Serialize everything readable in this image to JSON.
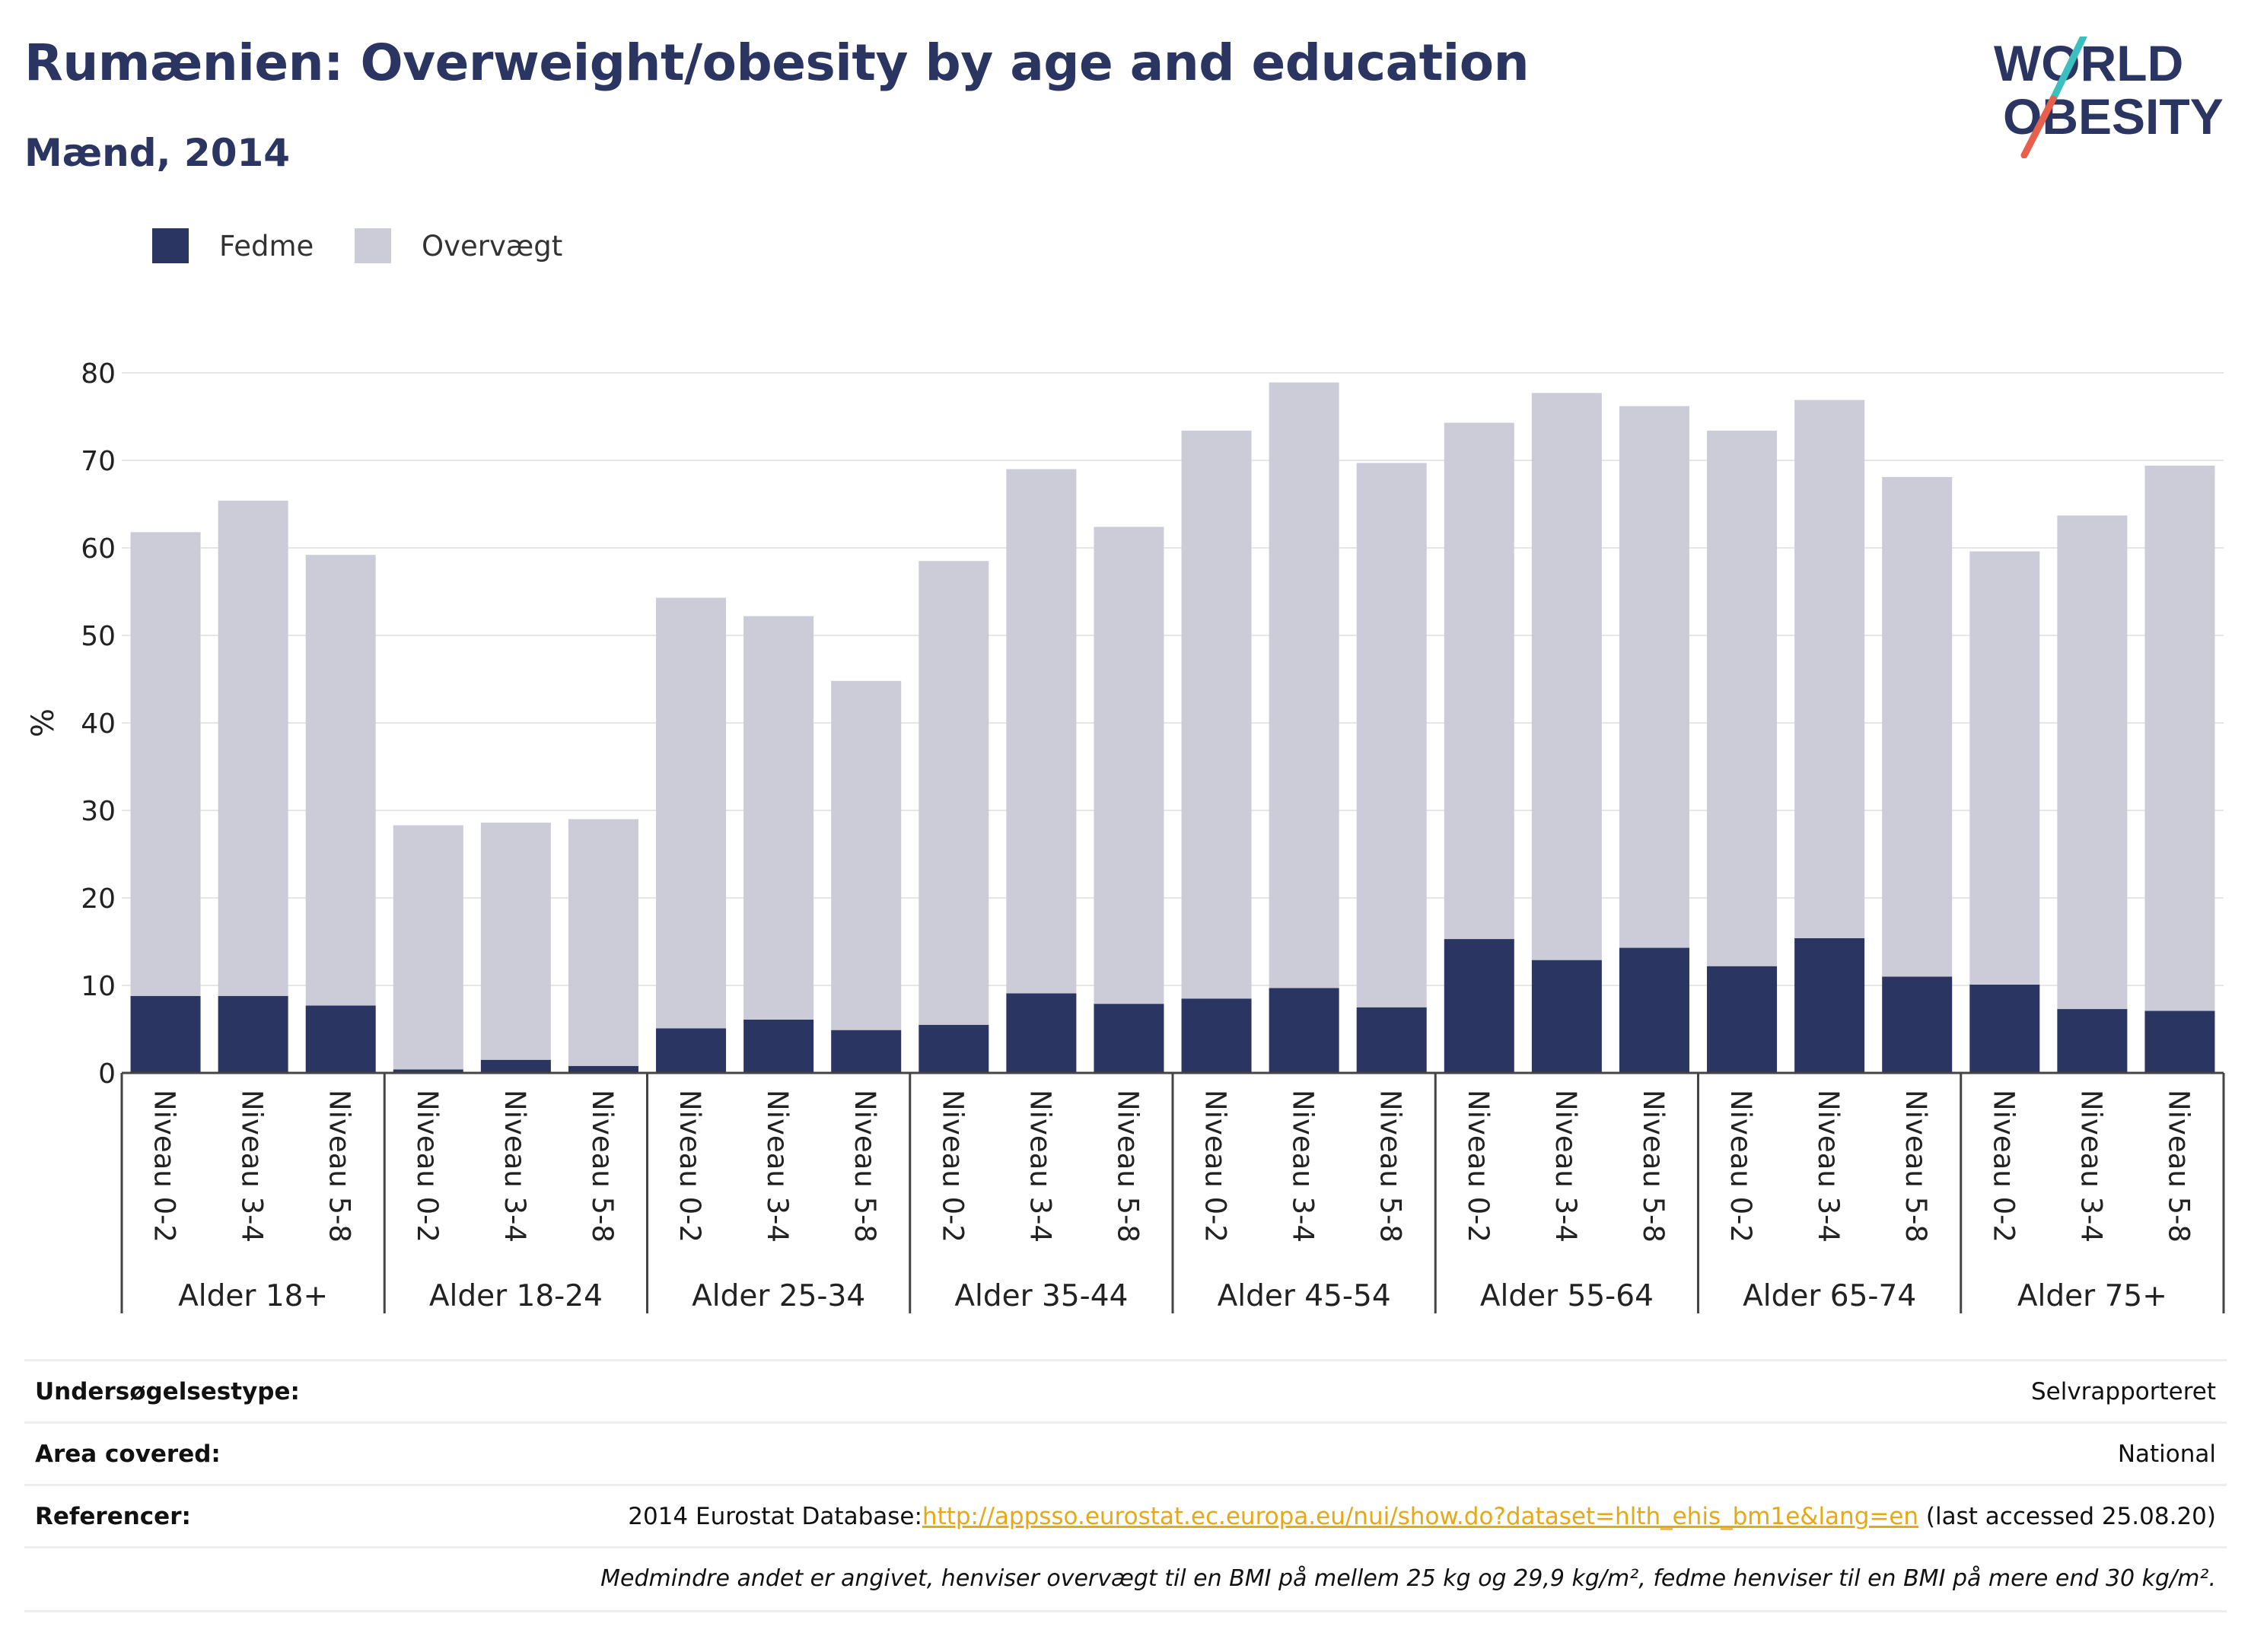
{
  "header": {
    "title": "Rumænien: Overweight/obesity by age and education",
    "subtitle": "Mænd, 2014"
  },
  "logo": {
    "line1": "WORLD",
    "line2": "OBESITY",
    "text_color": "#2b3562",
    "slash_color_top": "#3bbfbf",
    "slash_color_bottom": "#e8604c"
  },
  "legend": [
    {
      "label": "Fedme",
      "color": "#2b3562"
    },
    {
      "label": "Overvægt",
      "color": "#cbccd8"
    }
  ],
  "chart_data": {
    "type": "bar",
    "stacked": true,
    "ylabel": "%",
    "xlabel": "",
    "ylim": [
      0,
      80
    ],
    "yticks": [
      0,
      10,
      20,
      30,
      40,
      50,
      60,
      70,
      80
    ],
    "grid": true,
    "legend_position": "top-left",
    "groups": [
      "Alder 18+",
      "Alder 18-24",
      "Alder 25-34",
      "Alder 35-44",
      "Alder 45-54",
      "Alder 55-64",
      "Alder 65-74",
      "Alder 75+"
    ],
    "levels": [
      "Niveau 0-2",
      "Niveau 3-4",
      "Niveau 5-8"
    ],
    "series": [
      {
        "name": "Fedme",
        "color": "#2b3562",
        "values": [
          8.8,
          8.8,
          7.7,
          0.4,
          1.5,
          0.8,
          5.1,
          6.1,
          4.9,
          5.5,
          9.1,
          7.9,
          8.5,
          9.7,
          7.5,
          15.3,
          12.9,
          14.3,
          12.2,
          15.4,
          11.0,
          10.1,
          7.3,
          7.1
        ]
      },
      {
        "name": "Overvægt",
        "color": "#cbccd8",
        "values": [
          53.0,
          56.6,
          51.5,
          27.9,
          27.1,
          28.2,
          49.2,
          46.1,
          39.9,
          53.0,
          59.9,
          54.5,
          64.9,
          69.2,
          62.2,
          59.0,
          64.8,
          61.9,
          61.2,
          61.5,
          57.1,
          49.5,
          56.4,
          62.3
        ]
      }
    ]
  },
  "info": {
    "survey_type_label": "Undersøgelsestype:",
    "survey_type_value": "Selvrapporteret",
    "area_label": "Area covered:",
    "area_value": "National",
    "references_label": "Referencer:",
    "references_prefix": "2014 Eurostat Database:",
    "references_link": "http://appsso.eurostat.ec.europa.eu/nui/show.do?dataset=hlth_ehis_bm1e&lang=en",
    "references_suffix": " (last accessed 25.08.20)",
    "note": "Medmindre andet er angivet, henviser overvægt til en BMI på mellem 25 kg og 29,9 kg/m², fedme henviser til en BMI på mere end 30 kg/m²."
  }
}
